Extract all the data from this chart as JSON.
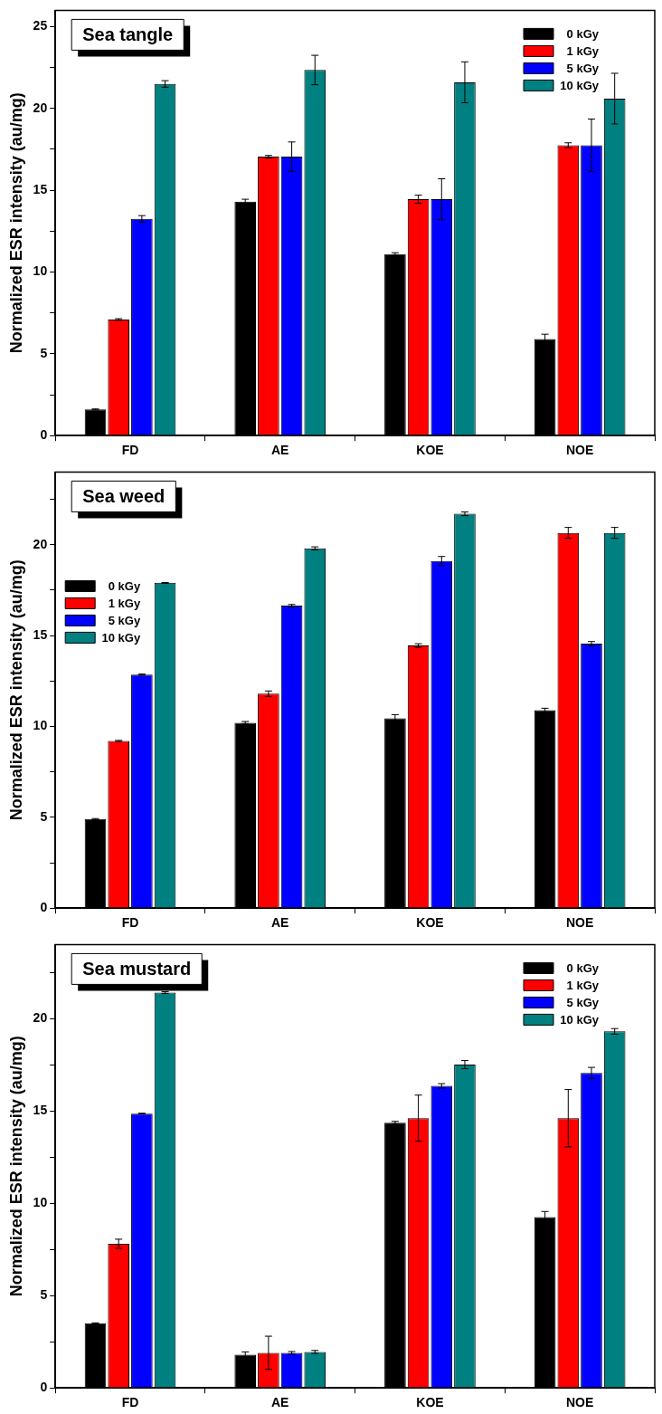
{
  "chart_data": [
    {
      "type": "bar",
      "title": "Sea tangle",
      "ylabel": "Normalized ESR intensity (au/mg)",
      "categories": [
        "FD",
        "AE",
        "KOE",
        "NOE"
      ],
      "series": [
        {
          "name": "0 kGy",
          "color": "#000000",
          "values": [
            1.6,
            14.3,
            11.1,
            5.9
          ],
          "errors": [
            0.03,
            0.15,
            0.08,
            0.3
          ]
        },
        {
          "name": "1 kGy",
          "color": "#ff0000",
          "values": [
            7.1,
            17.05,
            14.45,
            17.75
          ],
          "errors": [
            0.05,
            0.08,
            0.25,
            0.15
          ]
        },
        {
          "name": "5 kGy",
          "color": "#0000ff",
          "values": [
            13.25,
            17.05,
            14.45,
            17.75
          ],
          "errors": [
            0.2,
            0.9,
            1.25,
            1.6
          ]
        },
        {
          "name": "10 kGy",
          "color": "#008080",
          "values": [
            21.5,
            22.35,
            21.6,
            20.6
          ],
          "errors": [
            0.2,
            0.9,
            1.25,
            1.55
          ]
        }
      ],
      "ylim": [
        0,
        26
      ],
      "yticks": [
        0,
        {
          "value": 2.5,
          "label": null
        },
        5,
        {
          "value": 7.5,
          "label": null
        },
        10,
        {
          "value": 12.5,
          "label": null
        },
        15,
        {
          "value": 17.5,
          "label": null
        },
        20,
        {
          "value": 22.5,
          "label": null
        },
        25
      ],
      "grid": false,
      "legend": "top right"
    },
    {
      "type": "bar",
      "title": "Sea weed",
      "ylabel": "Normalized ESR intensity (au/mg)",
      "categories": [
        "FD",
        "AE",
        "KOE",
        "NOE"
      ],
      "series": [
        {
          "name": "0 kGy",
          "color": "#000000",
          "values": [
            4.9,
            10.2,
            10.45,
            10.9
          ],
          "errors": [
            0.03,
            0.07,
            0.2,
            0.1
          ]
        },
        {
          "name": "1 kGy",
          "color": "#ff0000",
          "values": [
            9.2,
            11.8,
            14.45,
            20.65
          ],
          "errors": [
            0.03,
            0.15,
            0.1,
            0.3
          ]
        },
        {
          "name": "5 kGy",
          "color": "#0000ff",
          "values": [
            12.85,
            16.65,
            19.1,
            14.55
          ],
          "errors": [
            0.03,
            0.06,
            0.25,
            0.12
          ]
        },
        {
          "name": "10 kGy",
          "color": "#008080",
          "values": [
            17.9,
            19.8,
            21.7,
            20.65
          ],
          "errors": [
            0.02,
            0.08,
            0.1,
            0.3
          ]
        }
      ],
      "ylim": [
        0,
        24
      ],
      "yticks": [
        0,
        {
          "value": 2.5,
          "label": null
        },
        5,
        {
          "value": 7.5,
          "label": null
        },
        10,
        {
          "value": 12.5,
          "label": null
        },
        15,
        {
          "value": 17.5,
          "label": null
        },
        20,
        {
          "value": 22.5,
          "label": null
        }
      ],
      "grid": false,
      "legend": "top left"
    },
    {
      "type": "bar",
      "title": "Sea mustard",
      "ylabel": "Normalized ESR intensity (au/mg)",
      "categories": [
        "FD",
        "AE",
        "KOE",
        "NOE"
      ],
      "series": [
        {
          "name": "0 kGy",
          "color": "#000000",
          "values": [
            3.5,
            1.8,
            14.35,
            9.25
          ],
          "errors": [
            0.02,
            0.15,
            0.08,
            0.3
          ]
        },
        {
          "name": "1 kGy",
          "color": "#ff0000",
          "values": [
            7.8,
            1.9,
            14.6,
            14.6
          ],
          "errors": [
            0.25,
            0.9,
            1.25,
            1.55
          ]
        },
        {
          "name": "5 kGy",
          "color": "#0000ff",
          "values": [
            14.85,
            1.9,
            16.35,
            17.05
          ],
          "errors": [
            0.02,
            0.07,
            0.12,
            0.3
          ]
        },
        {
          "name": "10 kGy",
          "color": "#008080",
          "values": [
            21.4,
            1.95,
            17.5,
            19.3
          ],
          "errors": [
            0.05,
            0.08,
            0.22,
            0.15
          ]
        }
      ],
      "ylim": [
        0,
        24
      ],
      "yticks": [
        0,
        {
          "value": 2.5,
          "label": null
        },
        5,
        {
          "value": 7.5,
          "label": null
        },
        10,
        {
          "value": 12.5,
          "label": null
        },
        15,
        {
          "value": 17.5,
          "label": null
        },
        20,
        {
          "value": 22.5,
          "label": null
        }
      ],
      "grid": false,
      "legend": "top right"
    }
  ]
}
